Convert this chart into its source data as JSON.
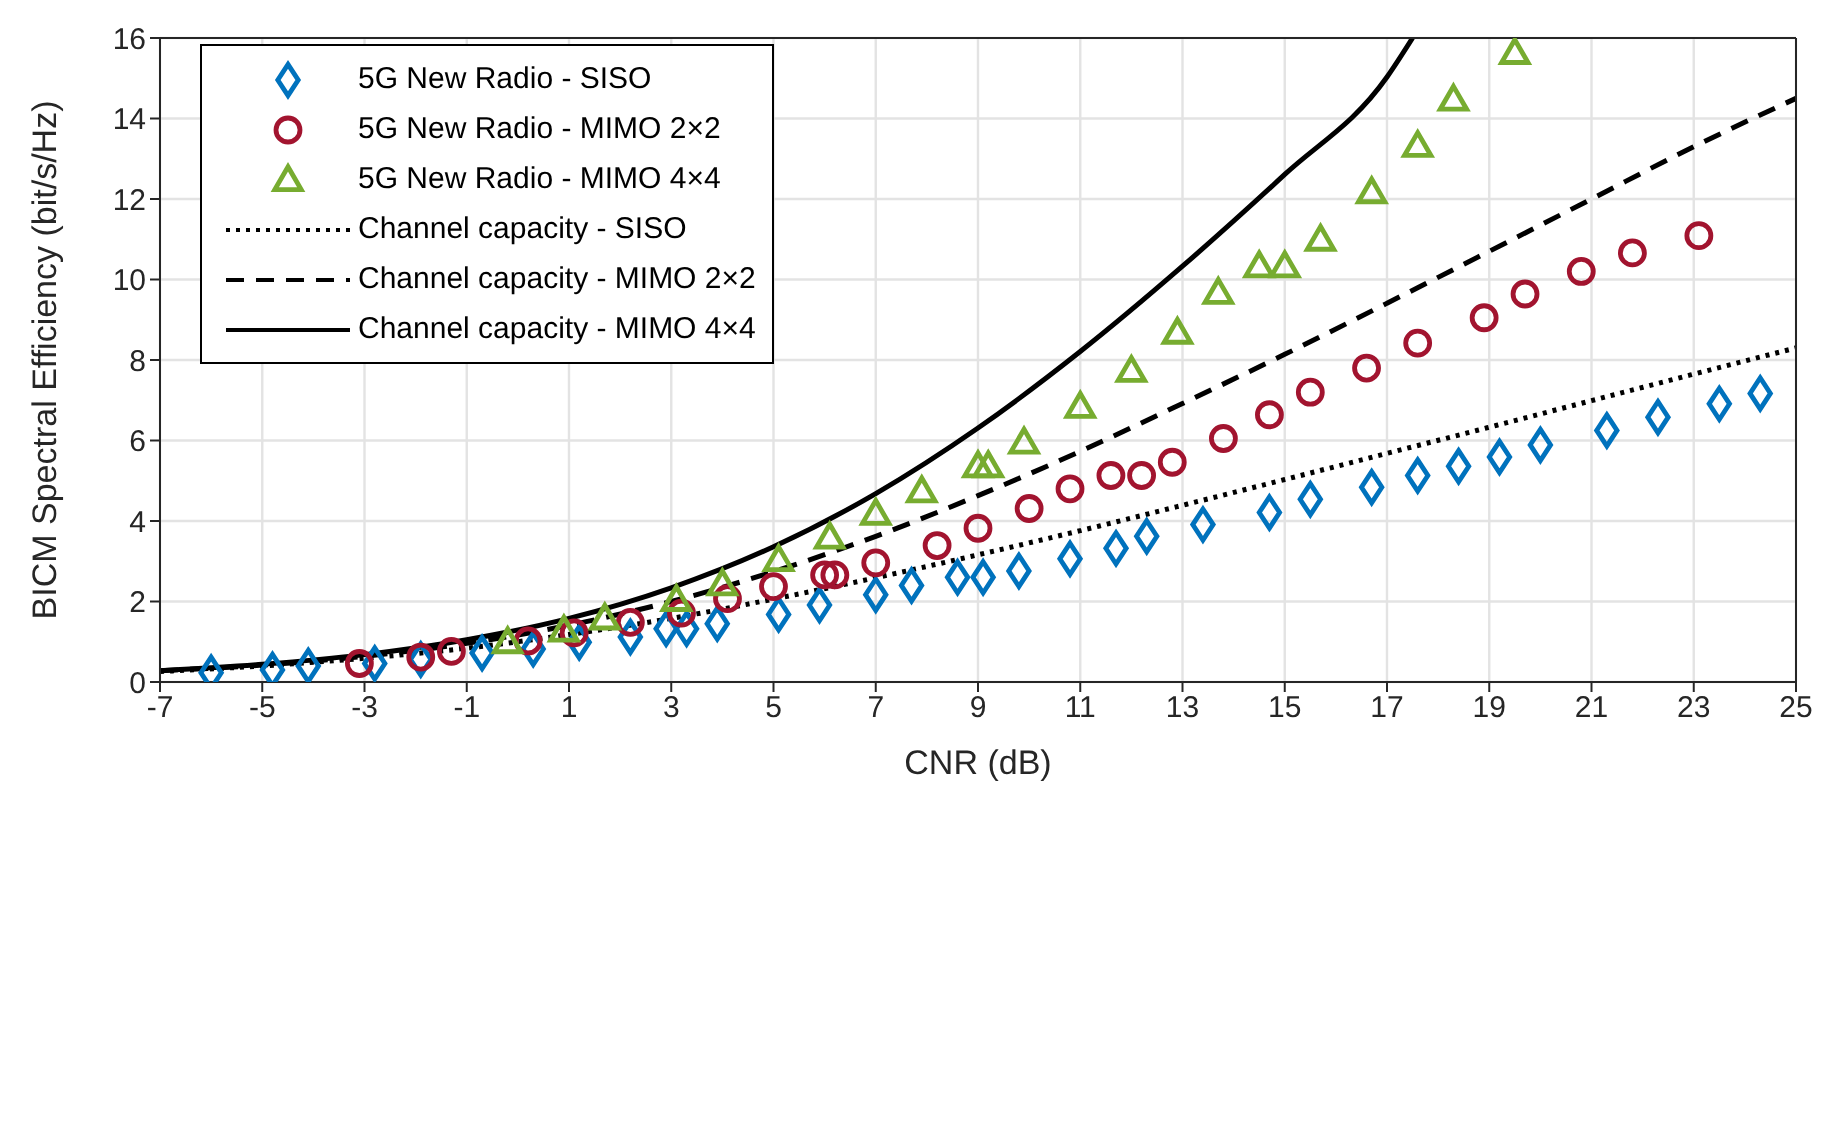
{
  "chart_data": {
    "type": "scatter",
    "xlabel": "CNR (dB)",
    "ylabel": "BICM Spectral Efficiency (bit/s/Hz)",
    "xlim": [
      -7,
      25
    ],
    "xticks": [
      -7,
      -5,
      -3,
      -1,
      1,
      3,
      5,
      7,
      9,
      11,
      13,
      15,
      17,
      19,
      21,
      23,
      25
    ],
    "ylim": [
      0,
      16
    ],
    "yticks": [
      0,
      2,
      4,
      6,
      8,
      10,
      12,
      14,
      16
    ],
    "grid": true,
    "legend": "top left",
    "series": [
      {
        "name": "5G New Radio - SISO",
        "marker": "diamond",
        "color": "#0072bd",
        "x": [
          -6.0,
          -4.8,
          -4.1,
          -2.8,
          -1.9,
          -0.7,
          0.3,
          1.2,
          2.2,
          2.9,
          3.3,
          3.9,
          5.1,
          5.9,
          7.0,
          7.7,
          8.6,
          9.1,
          9.8,
          10.8,
          11.7,
          12.3,
          13.4,
          14.7,
          15.5,
          16.7,
          17.6,
          18.4,
          19.2,
          20.0,
          21.3,
          22.3,
          23.5,
          24.3
        ],
        "values": [
          0.23,
          0.3,
          0.4,
          0.46,
          0.56,
          0.72,
          0.82,
          0.99,
          1.12,
          1.32,
          1.32,
          1.45,
          1.68,
          1.91,
          2.17,
          2.4,
          2.6,
          2.6,
          2.76,
          3.06,
          3.32,
          3.62,
          3.91,
          4.21,
          4.54,
          4.84,
          5.13,
          5.36,
          5.59,
          5.89,
          6.25,
          6.58,
          6.91,
          7.17
        ]
      },
      {
        "name": "5G New Radio - MIMO 2×2",
        "marker": "circle",
        "color": "#a2142f",
        "x": [
          -3.1,
          -1.9,
          -1.3,
          0.2,
          1.1,
          2.2,
          3.2,
          4.1,
          5.0,
          6.0,
          6.2,
          7.0,
          8.2,
          9.0,
          10.0,
          10.8,
          11.6,
          12.2,
          12.8,
          13.8,
          14.7,
          15.5,
          16.6,
          17.6,
          18.9,
          19.7,
          20.8,
          21.8,
          23.1
        ],
        "values": [
          0.46,
          0.62,
          0.76,
          1.02,
          1.22,
          1.48,
          1.71,
          2.07,
          2.37,
          2.66,
          2.66,
          2.96,
          3.39,
          3.82,
          4.31,
          4.8,
          5.13,
          5.13,
          5.46,
          6.05,
          6.64,
          7.2,
          7.8,
          8.42,
          9.05,
          9.64,
          10.2,
          10.66,
          11.09
        ]
      },
      {
        "name": "5G New Radio - MIMO 4×4",
        "marker": "triangle",
        "color": "#77ac30",
        "x": [
          -0.2,
          0.9,
          1.7,
          3.1,
          4.0,
          5.1,
          6.1,
          7.0,
          7.9,
          9.0,
          9.2,
          9.9,
          11.0,
          12.0,
          12.9,
          13.7,
          14.5,
          15.0,
          15.7,
          16.7,
          17.6,
          18.3,
          19.5
        ],
        "values": [
          0.99,
          1.28,
          1.58,
          2.04,
          2.43,
          3.03,
          3.59,
          4.18,
          4.74,
          5.36,
          5.36,
          5.95,
          6.84,
          7.73,
          8.68,
          9.67,
          10.33,
          10.33,
          10.99,
          12.17,
          13.32,
          14.47,
          15.63
        ]
      },
      {
        "name": "Channel capacity - SISO",
        "type": "line",
        "line_style": "dotted",
        "color": "#000000",
        "x": [
          -7,
          -5,
          -3,
          -1,
          1,
          3,
          5,
          7,
          9,
          11,
          13,
          15,
          17,
          19,
          21,
          23,
          25
        ],
        "values": [
          0.26,
          0.4,
          0.59,
          0.84,
          1.18,
          1.58,
          2.06,
          2.59,
          3.16,
          3.76,
          4.39,
          5.03,
          5.68,
          6.33,
          6.99,
          7.65,
          8.3
        ]
      },
      {
        "name": "Channel capacity - MIMO 2×2",
        "type": "line",
        "line_style": "dashed",
        "color": "#000000",
        "x": [
          -7,
          -5,
          -3,
          -1,
          1,
          3,
          5,
          7,
          9,
          11,
          13,
          15,
          17,
          19,
          21,
          23,
          25
        ],
        "values": [
          0.28,
          0.42,
          0.64,
          0.96,
          1.41,
          2.0,
          2.74,
          3.62,
          4.63,
          5.73,
          6.92,
          8.14,
          9.41,
          10.7,
          12.0,
          13.3,
          14.5
        ]
      },
      {
        "name": "Channel capacity - MIMO 4×4",
        "type": "line",
        "line_style": "solid",
        "color": "#000000",
        "x": [
          -7,
          -5,
          -3,
          -1,
          1,
          3,
          5,
          7,
          9,
          11,
          13,
          15,
          17,
          17.5
        ],
        "values": [
          0.28,
          0.44,
          0.68,
          1.05,
          1.58,
          2.34,
          3.36,
          4.68,
          6.31,
          8.21,
          10.33,
          12.61,
          15.03,
          16.0
        ]
      }
    ]
  }
}
